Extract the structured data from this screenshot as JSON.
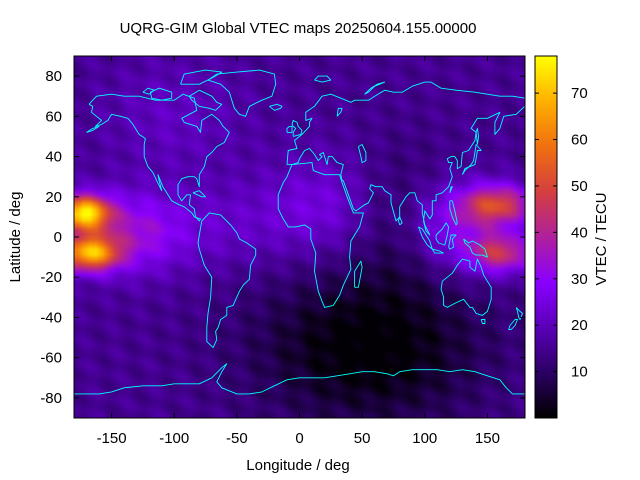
{
  "chart_data": {
    "type": "heatmap",
    "title": "UQRG-GIM Global VTEC maps 20250604.155.00000",
    "xlabel": "Longitude / deg",
    "ylabel": "Latitude / deg",
    "colorbar_label": "VTEC / TECU",
    "xlim": [
      -180,
      180
    ],
    "ylim": [
      -90,
      90
    ],
    "xticks": [
      -150,
      -100,
      -50,
      0,
      50,
      100,
      150
    ],
    "yticks": [
      -80,
      -60,
      -40,
      -20,
      0,
      20,
      40,
      60,
      80
    ],
    "colorbar_range": [
      0,
      78
    ],
    "colorbar_ticks": [
      10,
      20,
      30,
      40,
      50,
      60,
      70
    ],
    "colormap": [
      "#000000",
      "#2b0063",
      "#5a00b8",
      "#8a00ff",
      "#b0209c",
      "#d43f3f",
      "#f07010",
      "#ffb000",
      "#ffff00"
    ],
    "coastline_color": "#00ffff",
    "grid_resolution": "5 x 2.5 deg",
    "features": [
      {
        "lon": -170,
        "lat": 10,
        "peak_tecu": 75,
        "note": "equatorial anomaly crest over central Pacific"
      },
      {
        "lon": 150,
        "lat": 15,
        "peak_tecu": 50,
        "note": "northern crest over western Pacific"
      },
      {
        "lon": 150,
        "lat": -8,
        "peak_tecu": 45,
        "note": "southern crest over western Pacific"
      },
      {
        "lon": 55,
        "lat": -55,
        "peak_tecu": 3,
        "note": "night-side minimum over southern Indian Ocean"
      }
    ]
  }
}
